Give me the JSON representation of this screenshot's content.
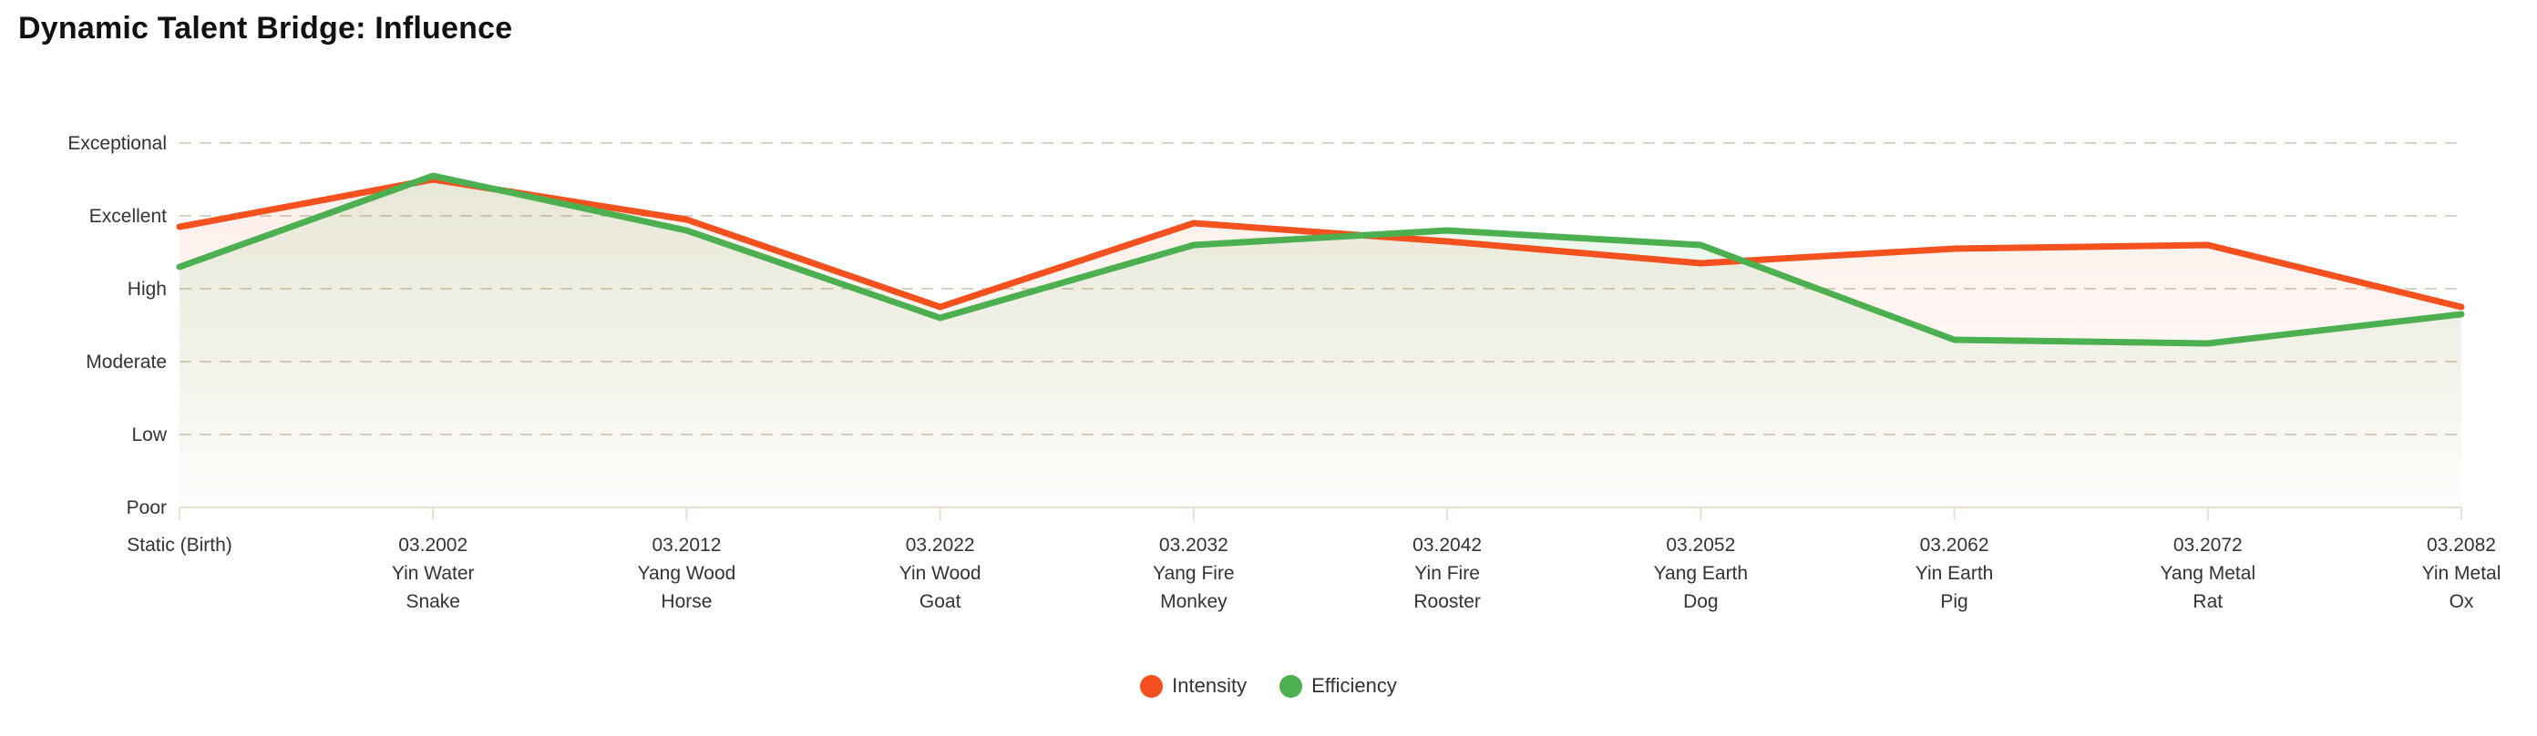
{
  "chart_data": {
    "type": "line",
    "title": "Dynamic Talent Bridge: Influence",
    "legend_position": "bottom-center",
    "grid": "horizontal-dashed",
    "y_axis": {
      "min": 0,
      "max": 5,
      "tick_labels_bottom_to_top": [
        "Poor",
        "Low",
        "Moderate",
        "High",
        "Excellent",
        "Exceptional"
      ]
    },
    "categories": [
      {
        "lines": [
          "Static (Birth)"
        ]
      },
      {
        "lines": [
          "03.2002",
          "Yin Water",
          "Snake"
        ]
      },
      {
        "lines": [
          "03.2012",
          "Yang Wood",
          "Horse"
        ]
      },
      {
        "lines": [
          "03.2022",
          "Yin Wood",
          "Goat"
        ]
      },
      {
        "lines": [
          "03.2032",
          "Yang Fire",
          "Monkey"
        ]
      },
      {
        "lines": [
          "03.2042",
          "Yin Fire",
          "Rooster"
        ]
      },
      {
        "lines": [
          "03.2052",
          "Yang Earth",
          "Dog"
        ]
      },
      {
        "lines": [
          "03.2062",
          "Yin Earth",
          "Pig"
        ]
      },
      {
        "lines": [
          "03.2072",
          "Yang Metal",
          "Rat"
        ]
      },
      {
        "lines": [
          "03.2082",
          "Yin Metal",
          "Ox"
        ]
      }
    ],
    "series": [
      {
        "name": "Intensity",
        "color": "#F4511E",
        "values": [
          3.85,
          4.5,
          3.95,
          2.75,
          3.9,
          3.65,
          3.35,
          3.55,
          3.6,
          2.75
        ]
      },
      {
        "name": "Efficiency",
        "color": "#4CAF50",
        "values": [
          3.3,
          4.55,
          3.8,
          2.6,
          3.6,
          3.8,
          3.6,
          2.3,
          2.25,
          2.65
        ]
      }
    ]
  },
  "colors": {
    "title_text": "#111111",
    "axis_text": "#333333",
    "gridline": "#d8d1c1",
    "axis_line": "#e8e0cf"
  }
}
